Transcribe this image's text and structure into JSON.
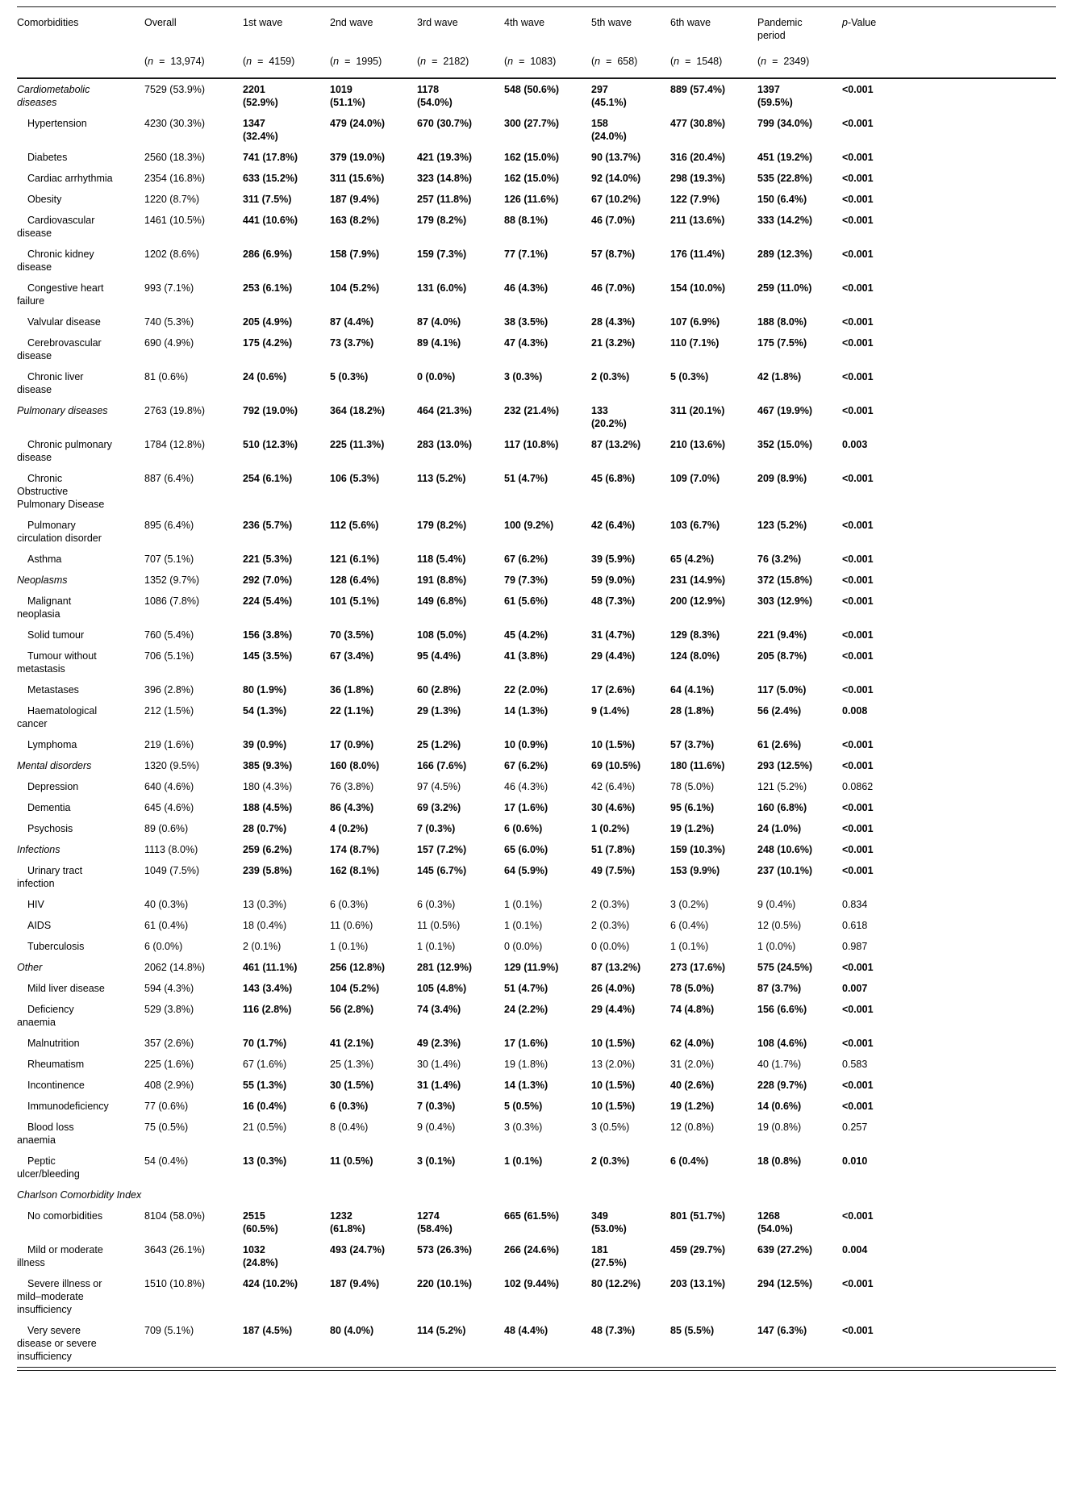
{
  "table": {
    "n_equals": "=",
    "columns": [
      {
        "id": "comorbidities",
        "label": "Comorbidities"
      },
      {
        "id": "overall",
        "label": "Overall",
        "n": "13,974"
      },
      {
        "id": "wave1",
        "label": "1st wave",
        "n": "4159"
      },
      {
        "id": "wave2",
        "label": "2nd wave",
        "n": "1995"
      },
      {
        "id": "wave3",
        "label": "3rd wave",
        "n": "2182"
      },
      {
        "id": "wave4",
        "label": "4th wave",
        "n": "1083"
      },
      {
        "id": "wave5",
        "label": "5th wave",
        "n": "658"
      },
      {
        "id": "wave6",
        "label": "6th wave",
        "n": "1548"
      },
      {
        "id": "pandemic",
        "label": "Pandemic period",
        "n": "2349"
      },
      {
        "id": "pvalue",
        "label": "p-Value",
        "italic_prefix_chars": 1
      }
    ],
    "rows": [
      {
        "label": "Cardiometabolic diseases",
        "type": "section",
        "bold": true,
        "p": "<0.001",
        "values": [
          "7529 (53.9%)",
          "2201 (52.9%)",
          "1019 (51.1%)",
          "1178 (54.0%)",
          "548 (50.6%)",
          "297 (45.1%)",
          "889 (57.4%)",
          "1397 (59.5%)"
        ]
      },
      {
        "label": "Hypertension",
        "type": "item",
        "bold": true,
        "p": "<0.001",
        "values": [
          "4230 (30.3%)",
          "1347 (32.4%)",
          "479 (24.0%)",
          "670 (30.7%)",
          "300 (27.7%)",
          "158 (24.0%)",
          "477 (30.8%)",
          "799 (34.0%)"
        ]
      },
      {
        "label": "Diabetes",
        "type": "item",
        "bold": true,
        "p": "<0.001",
        "values": [
          "2560 (18.3%)",
          "741 (17.8%)",
          "379 (19.0%)",
          "421 (19.3%)",
          "162 (15.0%)",
          "90 (13.7%)",
          "316 (20.4%)",
          "451 (19.2%)"
        ]
      },
      {
        "label": "Cardiac arrhythmia",
        "type": "item",
        "bold": true,
        "p": "<0.001",
        "values": [
          "2354 (16.8%)",
          "633 (15.2%)",
          "311 (15.6%)",
          "323 (14.8%)",
          "162 (15.0%)",
          "92 (14.0%)",
          "298 (19.3%)",
          "535 (22.8%)"
        ]
      },
      {
        "label": "Obesity",
        "type": "item",
        "bold": true,
        "p": "<0.001",
        "values": [
          "1220 (8.7%)",
          "311 (7.5%)",
          "187 (9.4%)",
          "257 (11.8%)",
          "126 (11.6%)",
          "67 (10.2%)",
          "122 (7.9%)",
          "150 (6.4%)"
        ]
      },
      {
        "label": "Cardiovascular disease",
        "type": "item",
        "bold": true,
        "p": "<0.001",
        "values": [
          "1461 (10.5%)",
          "441 (10.6%)",
          "163 (8.2%)",
          "179 (8.2%)",
          "88 (8.1%)",
          "46 (7.0%)",
          "211 (13.6%)",
          "333 (14.2%)"
        ]
      },
      {
        "label": "Chronic kidney disease",
        "type": "item",
        "bold": true,
        "p": "<0.001",
        "values": [
          "1202 (8.6%)",
          "286 (6.9%)",
          "158 (7.9%)",
          "159 (7.3%)",
          "77 (7.1%)",
          "57 (8.7%)",
          "176 (11.4%)",
          "289 (12.3%)"
        ]
      },
      {
        "label": "Congestive heart failure",
        "type": "item",
        "bold": true,
        "p": "<0.001",
        "values": [
          "993 (7.1%)",
          "253 (6.1%)",
          "104 (5.2%)",
          "131 (6.0%)",
          "46 (4.3%)",
          "46 (7.0%)",
          "154 (10.0%)",
          "259 (11.0%)"
        ]
      },
      {
        "label": "Valvular disease",
        "type": "item",
        "bold": true,
        "p": "<0.001",
        "values": [
          "740 (5.3%)",
          "205 (4.9%)",
          "87 (4.4%)",
          "87 (4.0%)",
          "38 (3.5%)",
          "28 (4.3%)",
          "107 (6.9%)",
          "188 (8.0%)"
        ]
      },
      {
        "label": "Cerebrovascular disease",
        "type": "item",
        "bold": true,
        "p": "<0.001",
        "values": [
          "690 (4.9%)",
          "175 (4.2%)",
          "73 (3.7%)",
          "89 (4.1%)",
          "47 (4.3%)",
          "21 (3.2%)",
          "110 (7.1%)",
          "175 (7.5%)"
        ]
      },
      {
        "label": "Chronic liver disease",
        "type": "item",
        "bold": true,
        "p": "<0.001",
        "values": [
          "81 (0.6%)",
          "24 (0.6%)",
          "5 (0.3%)",
          "0 (0.0%)",
          "3 (0.3%)",
          "2 (0.3%)",
          "5 (0.3%)",
          "42 (1.8%)"
        ]
      },
      {
        "label": "Pulmonary diseases",
        "type": "section",
        "bold": true,
        "p": "<0.001",
        "values": [
          "2763 (19.8%)",
          "792 (19.0%)",
          "364 (18.2%)",
          "464 (21.3%)",
          "232 (21.4%)",
          "133 (20.2%)",
          "311 (20.1%)",
          "467 (19.9%)"
        ]
      },
      {
        "label": "Chronic pulmonary disease",
        "type": "item",
        "bold": true,
        "p": "0.003",
        "values": [
          "1784 (12.8%)",
          "510 (12.3%)",
          "225 (11.3%)",
          "283 (13.0%)",
          "117 (10.8%)",
          "87 (13.2%)",
          "210 (13.6%)",
          "352 (15.0%)"
        ]
      },
      {
        "label": "Chronic Obstructive Pulmonary Disease",
        "type": "item",
        "bold": true,
        "p": "<0.001",
        "values": [
          "887 (6.4%)",
          "254 (6.1%)",
          "106 (5.3%)",
          "113 (5.2%)",
          "51 (4.7%)",
          "45 (6.8%)",
          "109 (7.0%)",
          "209 (8.9%)"
        ]
      },
      {
        "label": "Pulmonary circulation disorder",
        "type": "item",
        "bold": true,
        "p": "<0.001",
        "values": [
          "895 (6.4%)",
          "236 (5.7%)",
          "112 (5.6%)",
          "179 (8.2%)",
          "100 (9.2%)",
          "42 (6.4%)",
          "103 (6.7%)",
          "123 (5.2%)"
        ]
      },
      {
        "label": "Asthma",
        "type": "item",
        "bold": true,
        "p": "<0.001",
        "values": [
          "707 (5.1%)",
          "221 (5.3%)",
          "121 (6.1%)",
          "118 (5.4%)",
          "67 (6.2%)",
          "39 (5.9%)",
          "65 (4.2%)",
          "76 (3.2%)"
        ]
      },
      {
        "label": "Neoplasms",
        "type": "section",
        "bold": true,
        "p": "<0.001",
        "values": [
          "1352 (9.7%)",
          "292 (7.0%)",
          "128 (6.4%)",
          "191 (8.8%)",
          "79 (7.3%)",
          "59 (9.0%)",
          "231 (14.9%)",
          "372 (15.8%)"
        ]
      },
      {
        "label": "Malignant neoplasia",
        "type": "item",
        "bold": true,
        "p": "<0.001",
        "values": [
          "1086 (7.8%)",
          "224 (5.4%)",
          "101 (5.1%)",
          "149 (6.8%)",
          "61 (5.6%)",
          "48 (7.3%)",
          "200 (12.9%)",
          "303 (12.9%)"
        ]
      },
      {
        "label": "Solid tumour",
        "type": "item",
        "bold": true,
        "p": "<0.001",
        "values": [
          "760 (5.4%)",
          "156 (3.8%)",
          "70 (3.5%)",
          "108 (5.0%)",
          "45 (4.2%)",
          "31 (4.7%)",
          "129 (8.3%)",
          "221 (9.4%)"
        ]
      },
      {
        "label": "Tumour without metastasis",
        "type": "item",
        "bold": true,
        "p": "<0.001",
        "values": [
          "706 (5.1%)",
          "145 (3.5%)",
          "67 (3.4%)",
          "95 (4.4%)",
          "41 (3.8%)",
          "29 (4.4%)",
          "124 (8.0%)",
          "205 (8.7%)"
        ]
      },
      {
        "label": "Metastases",
        "type": "item",
        "bold": true,
        "p": "<0.001",
        "values": [
          "396 (2.8%)",
          "80 (1.9%)",
          "36 (1.8%)",
          "60 (2.8%)",
          "22 (2.0%)",
          "17 (2.6%)",
          "64 (4.1%)",
          "117 (5.0%)"
        ]
      },
      {
        "label": "Haematological cancer",
        "type": "item",
        "bold": true,
        "p": "0.008",
        "values": [
          "212 (1.5%)",
          "54 (1.3%)",
          "22 (1.1%)",
          "29 (1.3%)",
          "14 (1.3%)",
          "9 (1.4%)",
          "28 (1.8%)",
          "56 (2.4%)"
        ]
      },
      {
        "label": "Lymphoma",
        "type": "item",
        "bold": true,
        "p": "<0.001",
        "values": [
          "219 (1.6%)",
          "39 (0.9%)",
          "17 (0.9%)",
          "25 (1.2%)",
          "10 (0.9%)",
          "10 (1.5%)",
          "57 (3.7%)",
          "61 (2.6%)"
        ]
      },
      {
        "label": "Mental disorders",
        "type": "section",
        "bold": true,
        "p": "<0.001",
        "values": [
          "1320 (9.5%)",
          "385 (9.3%)",
          "160 (8.0%)",
          "166 (7.6%)",
          "67 (6.2%)",
          "69 (10.5%)",
          "180 (11.6%)",
          "293 (12.5%)"
        ]
      },
      {
        "label": "Depression",
        "type": "item",
        "bold": false,
        "p": "0.0862",
        "values": [
          "640 (4.6%)",
          "180 (4.3%)",
          "76 (3.8%)",
          "97 (4.5%)",
          "46 (4.3%)",
          "42 (6.4%)",
          "78 (5.0%)",
          "121 (5.2%)"
        ]
      },
      {
        "label": "Dementia",
        "type": "item",
        "bold": true,
        "p": "<0.001",
        "values": [
          "645 (4.6%)",
          "188 (4.5%)",
          "86 (4.3%)",
          "69 (3.2%)",
          "17 (1.6%)",
          "30 (4.6%)",
          "95 (6.1%)",
          "160 (6.8%)"
        ]
      },
      {
        "label": "Psychosis",
        "type": "item",
        "bold": true,
        "p": "<0.001",
        "values": [
          "89 (0.6%)",
          "28 (0.7%)",
          "4 (0.2%)",
          "7 (0.3%)",
          "6 (0.6%)",
          "1 (0.2%)",
          "19 (1.2%)",
          "24 (1.0%)"
        ]
      },
      {
        "label": "Infections",
        "type": "section",
        "bold": true,
        "p": "<0.001",
        "values": [
          "1113 (8.0%)",
          "259 (6.2%)",
          "174 (8.7%)",
          "157 (7.2%)",
          "65 (6.0%)",
          "51 (7.8%)",
          "159 (10.3%)",
          "248 (10.6%)"
        ]
      },
      {
        "label": "Urinary tract infection",
        "type": "item",
        "bold": true,
        "p": "<0.001",
        "values": [
          "1049 (7.5%)",
          "239 (5.8%)",
          "162 (8.1%)",
          "145 (6.7%)",
          "64 (5.9%)",
          "49 (7.5%)",
          "153 (9.9%)",
          "237 (10.1%)"
        ]
      },
      {
        "label": "HIV",
        "type": "item",
        "bold": false,
        "p": "0.834",
        "values": [
          "40 (0.3%)",
          "13 (0.3%)",
          "6 (0.3%)",
          "6 (0.3%)",
          "1 (0.1%)",
          "2 (0.3%)",
          "3 (0.2%)",
          "9 (0.4%)"
        ]
      },
      {
        "label": "AIDS",
        "type": "item",
        "bold": false,
        "p": "0.618",
        "values": [
          "61 (0.4%)",
          "18 (0.4%)",
          "11 (0.6%)",
          "11 (0.5%)",
          "1 (0.1%)",
          "2 (0.3%)",
          "6 (0.4%)",
          "12 (0.5%)"
        ]
      },
      {
        "label": "Tuberculosis",
        "type": "item",
        "bold": false,
        "p": "0.987",
        "values": [
          "6 (0.0%)",
          "2 (0.1%)",
          "1 (0.1%)",
          "1 (0.1%)",
          "0 (0.0%)",
          "0 (0.0%)",
          "1 (0.1%)",
          "1 (0.0%)"
        ]
      },
      {
        "label": "Other",
        "type": "section",
        "bold": true,
        "p": "<0.001",
        "values": [
          "2062 (14.8%)",
          "461 (11.1%)",
          "256 (12.8%)",
          "281 (12.9%)",
          "129 (11.9%)",
          "87 (13.2%)",
          "273 (17.6%)",
          "575 (24.5%)"
        ]
      },
      {
        "label": "Mild liver disease",
        "type": "item",
        "bold": true,
        "p": "0.007",
        "values": [
          "594 (4.3%)",
          "143 (3.4%)",
          "104 (5.2%)",
          "105 (4.8%)",
          "51 (4.7%)",
          "26 (4.0%)",
          "78 (5.0%)",
          "87 (3.7%)"
        ]
      },
      {
        "label": "Deficiency anaemia",
        "type": "item",
        "bold": true,
        "p": "<0.001",
        "values": [
          "529 (3.8%)",
          "116 (2.8%)",
          "56 (2.8%)",
          "74 (3.4%)",
          "24 (2.2%)",
          "29 (4.4%)",
          "74 (4.8%)",
          "156 (6.6%)"
        ]
      },
      {
        "label": "Malnutrition",
        "type": "item",
        "bold": true,
        "p": "<0.001",
        "values": [
          "357 (2.6%)",
          "70 (1.7%)",
          "41 (2.1%)",
          "49 (2.3%)",
          "17 (1.6%)",
          "10 (1.5%)",
          "62 (4.0%)",
          "108 (4.6%)"
        ]
      },
      {
        "label": "Rheumatism",
        "type": "item",
        "bold": false,
        "p": "0.583",
        "values": [
          "225 (1.6%)",
          "67 (1.6%)",
          "25 (1.3%)",
          "30 (1.4%)",
          "19 (1.8%)",
          "13 (2.0%)",
          "31 (2.0%)",
          "40 (1.7%)"
        ]
      },
      {
        "label": "Incontinence",
        "type": "item",
        "bold": true,
        "p": "<0.001",
        "values": [
          "408 (2.9%)",
          "55 (1.3%)",
          "30 (1.5%)",
          "31 (1.4%)",
          "14 (1.3%)",
          "10 (1.5%)",
          "40 (2.6%)",
          "228 (9.7%)"
        ]
      },
      {
        "label": "Immunodeficiency",
        "type": "item",
        "bold": true,
        "p": "<0.001",
        "values": [
          "77 (0.6%)",
          "16 (0.4%)",
          "6 (0.3%)",
          "7 (0.3%)",
          "5 (0.5%)",
          "10 (1.5%)",
          "19 (1.2%)",
          "14 (0.6%)"
        ]
      },
      {
        "label": "Blood loss anaemia",
        "type": "item",
        "bold": false,
        "p": "0.257",
        "values": [
          "75 (0.5%)",
          "21 (0.5%)",
          "8 (0.4%)",
          "9 (0.4%)",
          "3 (0.3%)",
          "3 (0.5%)",
          "12 (0.8%)",
          "19 (0.8%)"
        ]
      },
      {
        "label": "Peptic ulcer/bleeding",
        "type": "item",
        "bold": true,
        "p": "0.010",
        "values": [
          "54 (0.4%)",
          "13 (0.3%)",
          "11 (0.5%)",
          "3 (0.1%)",
          "1 (0.1%)",
          "2 (0.3%)",
          "6 (0.4%)",
          "18 (0.8%)"
        ]
      },
      {
        "label": "Charlson Comorbidity Index",
        "type": "section",
        "bold": false,
        "p": "",
        "values": []
      },
      {
        "label": "No comorbidities",
        "type": "item",
        "bold": true,
        "p": "<0.001",
        "values": [
          "8104 (58.0%)",
          "2515 (60.5%)",
          "1232 (61.8%)",
          "1274 (58.4%)",
          "665 (61.5%)",
          "349 (53.0%)",
          "801 (51.7%)",
          "1268 (54.0%)"
        ]
      },
      {
        "label": "Mild or moderate illness",
        "type": "item",
        "bold": true,
        "p": "0.004",
        "values": [
          "3643 (26.1%)",
          "1032 (24.8%)",
          "493 (24.7%)",
          "573 (26.3%)",
          "266 (24.6%)",
          "181 (27.5%)",
          "459 (29.7%)",
          "639 (27.2%)"
        ]
      },
      {
        "label": "Severe illness or mild–moderate insufficiency",
        "type": "item",
        "bold": true,
        "p": "<0.001",
        "values": [
          "1510 (10.8%)",
          "424 (10.2%)",
          "187 (9.4%)",
          "220 (10.1%)",
          "102 (9.44%)",
          "80 (12.2%)",
          "203 (13.1%)",
          "294 (12.5%)"
        ]
      },
      {
        "label": "Very severe disease or severe insufficiency",
        "type": "item",
        "bold": true,
        "p": "<0.001",
        "values": [
          "709 (5.1%)",
          "187 (4.5%)",
          "80 (4.0%)",
          "114 (5.2%)",
          "48 (4.4%)",
          "48 (7.3%)",
          "85 (5.5%)",
          "147 (6.3%)"
        ]
      }
    ]
  }
}
